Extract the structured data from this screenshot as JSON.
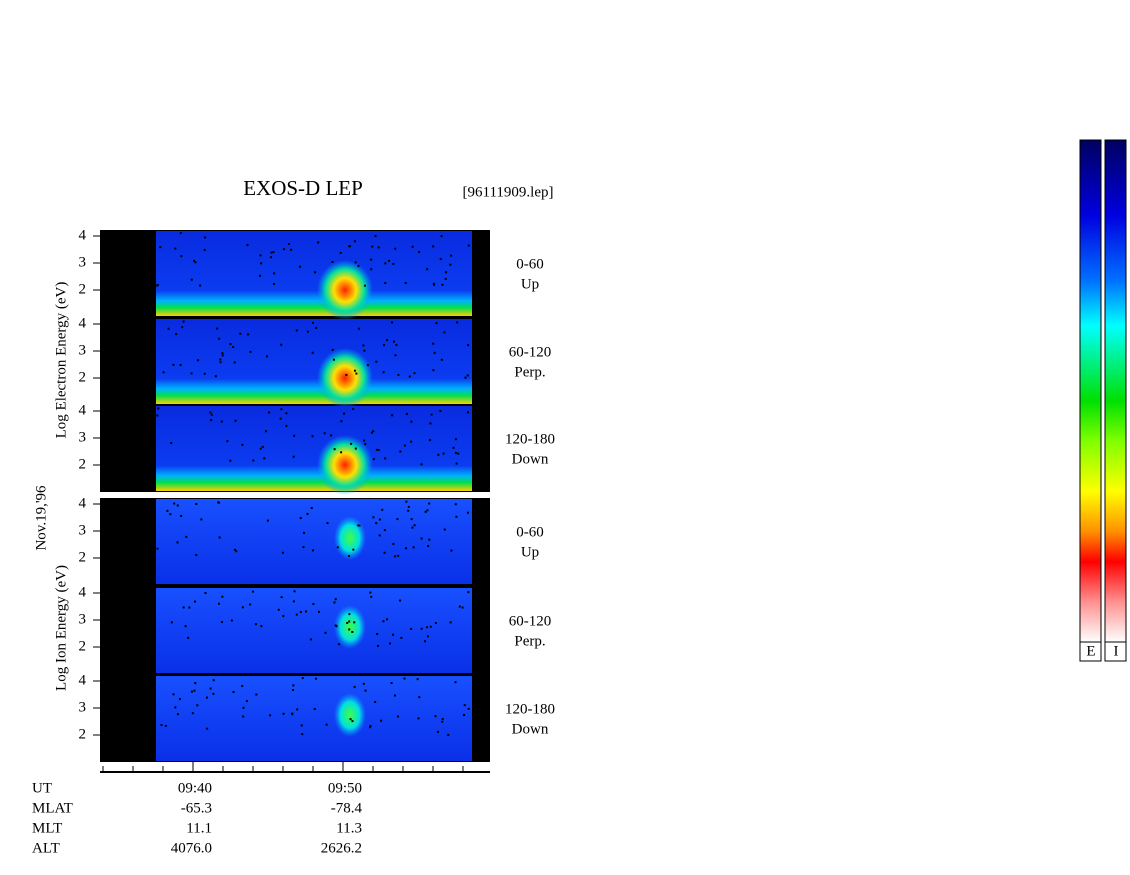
{
  "header": {
    "title": "EXOS-D LEP",
    "file": "[96111909.lep]"
  },
  "date": "Nov.19,'96",
  "groups": [
    {
      "axis_label": "Log  Electron  Energy (eV)",
      "panels": [
        {
          "angle": "0-60",
          "direction": "Up",
          "ticks": [
            "4",
            "3",
            "2"
          ]
        },
        {
          "angle": "60-120",
          "direction": "Perp.",
          "ticks": [
            "4",
            "3",
            "2"
          ]
        },
        {
          "angle": "120-180",
          "direction": "Down",
          "ticks": [
            "4",
            "3",
            "2"
          ]
        }
      ]
    },
    {
      "axis_label": "Log  Ion  Energy (eV)",
      "panels": [
        {
          "angle": "0-60",
          "direction": "Up",
          "ticks": [
            "4",
            "3",
            "2"
          ]
        },
        {
          "angle": "60-120",
          "direction": "Perp.",
          "ticks": [
            "4",
            "3",
            "2"
          ]
        },
        {
          "angle": "120-180",
          "direction": "Down",
          "ticks": [
            "4",
            "3",
            "2"
          ]
        }
      ]
    }
  ],
  "table": {
    "labels": [
      "UT",
      "MLAT",
      "MLT",
      "ALT"
    ],
    "columns": [
      [
        "09:40",
        "-65.3",
        "11.1",
        "4076.0"
      ],
      [
        "09:50",
        "-78.4",
        "11.3",
        "2626.2"
      ]
    ]
  },
  "colorbars": [
    "E",
    "I"
  ]
}
